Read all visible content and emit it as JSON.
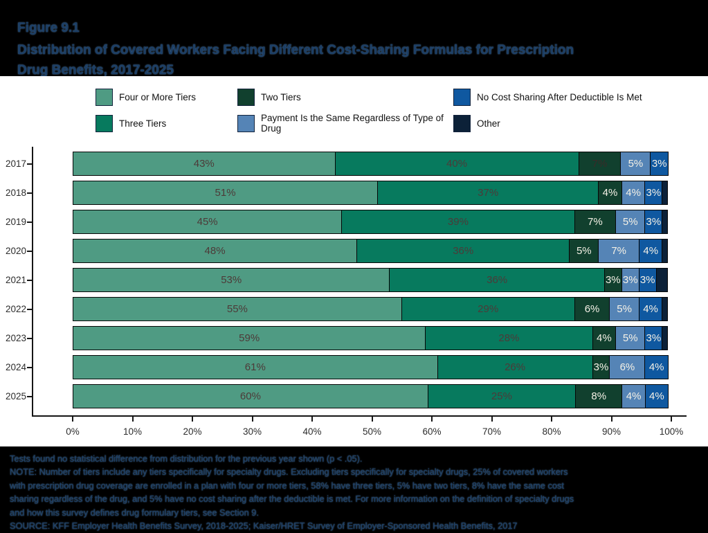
{
  "header": {
    "figure_label": "Figure 9.1",
    "title_line1": "Distribution of Covered Workers Facing Different Cost-Sharing Formulas for Prescription",
    "title_line2": "Drug Benefits, 2017-2025"
  },
  "legend": {
    "items": [
      {
        "label": "Four or More Tiers",
        "color": "#4f9b83"
      },
      {
        "label": "Two Tiers",
        "color": "#11402e"
      },
      {
        "label": "No Cost Sharing After Deductible Is Met",
        "color": "#0f58a0"
      },
      {
        "label": "Three Tiers",
        "color": "#077a5e"
      },
      {
        "label": "Payment Is the Same Regardless of Type of Drug",
        "color": "#5584b6"
      },
      {
        "label": "Other",
        "color": "#0c2138"
      }
    ]
  },
  "chart_data": {
    "type": "bar",
    "subtype": "horizontal_stacked_percent",
    "title": "Distribution of Covered Workers Facing Different Cost-Sharing Formulas for Prescription Drug Benefits, 2017-2025",
    "categories": [
      "2017",
      "2018",
      "2019",
      "2020",
      "2021",
      "2022",
      "2023",
      "2024",
      "2025"
    ],
    "series": [
      {
        "name": "Four or More Tiers",
        "color": "#4f9b83",
        "label_style": "dark",
        "values": [
          43,
          51,
          45,
          48,
          53,
          55,
          59,
          61,
          60
        ]
      },
      {
        "name": "Three Tiers",
        "color": "#077a5e",
        "label_style": "dark",
        "values": [
          40,
          37,
          39,
          36,
          36,
          29,
          28,
          26,
          25
        ]
      },
      {
        "name": "Two Tiers",
        "color": "#11402e",
        "label_style": "light",
        "values": [
          7,
          4,
          7,
          5,
          3,
          6,
          4,
          3,
          8
        ]
      },
      {
        "name": "Payment Is the Same Regardless of Type of Drug",
        "color": "#5584b6",
        "label_style": "light",
        "values": [
          5,
          4,
          5,
          7,
          3,
          5,
          5,
          6,
          4
        ]
      },
      {
        "name": "No Cost Sharing After Deductible Is Met",
        "color": "#0f58a0",
        "label_style": "light",
        "values": [
          3,
          3,
          3,
          4,
          3,
          4,
          3,
          4,
          4
        ]
      },
      {
        "name": "Other",
        "color": "#0c2138",
        "label_style": "none",
        "values": [
          0,
          1,
          1,
          1,
          2,
          1,
          1,
          0,
          0
        ]
      }
    ],
    "label_suffix": "%",
    "label_min_value": 3,
    "dark_label_exceptions": [
      {
        "category": "2017",
        "series": "Two Tiers"
      }
    ],
    "label_colors": {
      "dark": "#4d3a38",
      "light": "#f5f1e6",
      "exception": "#3a2a28"
    },
    "x_ticks": [
      "0%",
      "10%",
      "20%",
      "30%",
      "40%",
      "50%",
      "60%",
      "70%",
      "80%",
      "90%",
      "100%"
    ],
    "xlim": [
      0,
      100
    ],
    "xlabel": "",
    "ylabel": "",
    "grid": false,
    "legend_position": "top"
  },
  "footnotes": {
    "lines": [
      "Tests found no statistical difference from distribution for the previous year shown (p < .05).",
      "NOTE: Number of tiers include any tiers specifically for specialty drugs. Excluding tiers specifically for specialty drugs, 25% of covered workers",
      "with prescription drug coverage are enrolled in a plan with four or more tiers, 58% have three tiers, 5% have two tiers, 8% have the same cost",
      "sharing regardless of the drug, and 5% have no cost sharing after the deductible is met. For more information on the definition of specialty drugs",
      "and how this survey defines drug formulary tiers, see Section 9.",
      "SOURCE: KFF Employer Health Benefits Survey, 2018-2025; Kaiser/HRET Survey of Employer-Sponsored Health Benefits, 2017"
    ]
  }
}
